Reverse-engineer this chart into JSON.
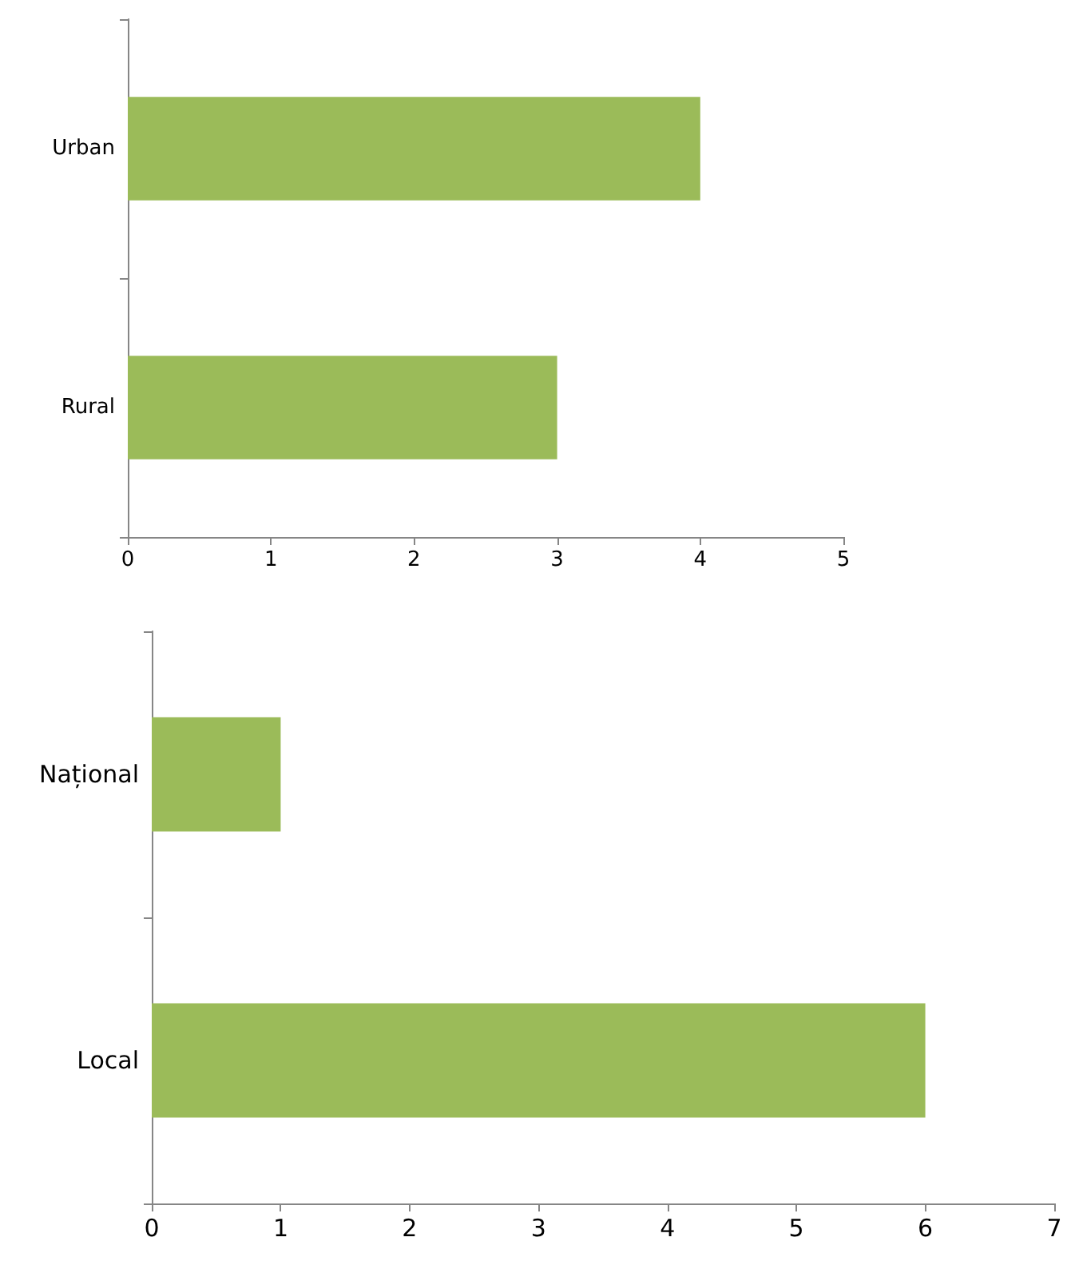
{
  "chart_data": [
    {
      "type": "bar",
      "orientation": "horizontal",
      "categories": [
        "Urban",
        "Rural"
      ],
      "values": [
        4,
        3
      ],
      "color": "#9bbb59",
      "xlim": [
        0,
        5
      ],
      "xticks": [
        0,
        1,
        2,
        3,
        4,
        5
      ]
    },
    {
      "type": "bar",
      "orientation": "horizontal",
      "categories": [
        "Național",
        "Local"
      ],
      "values": [
        1,
        6
      ],
      "color": "#9bbb59",
      "xlim": [
        0,
        7
      ],
      "xticks": [
        0,
        1,
        2,
        3,
        4,
        5,
        6,
        7
      ]
    }
  ]
}
